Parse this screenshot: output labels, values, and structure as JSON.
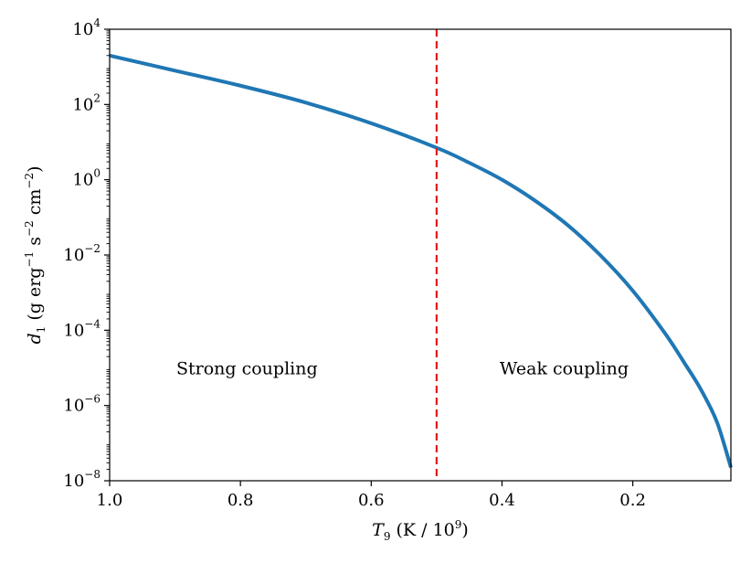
{
  "chart_data": {
    "type": "line",
    "title": "",
    "xlabel": {
      "var": "T",
      "sub": "9",
      "units_prefix": " (K / 10",
      "units_sup": "9",
      "units_suffix": ")"
    },
    "ylabel": {
      "var": "d",
      "sub": "1",
      "p1": " (g erg",
      "s1": "−1",
      "p2": " s",
      "s2": "−2",
      "p3": " cm",
      "s3": "−2",
      "p4": ")"
    },
    "x_axis": {
      "direction": "reversed",
      "lim": [
        1.0,
        0.05
      ],
      "ticks": [
        {
          "value": 1.0,
          "label": "1.0"
        },
        {
          "value": 0.8,
          "label": "0.8"
        },
        {
          "value": 0.6,
          "label": "0.6"
        },
        {
          "value": 0.4,
          "label": "0.4"
        },
        {
          "value": 0.2,
          "label": "0.2"
        }
      ]
    },
    "y_axis": {
      "scale": "log",
      "lim_exp": [
        -8,
        4
      ],
      "ticks": [
        {
          "exp": 4,
          "base": "10",
          "sup": "4"
        },
        {
          "exp": 2,
          "base": "10",
          "sup": "2"
        },
        {
          "exp": 0,
          "base": "10",
          "sup": "0"
        },
        {
          "exp": -2,
          "base": "10",
          "sup": "−2"
        },
        {
          "exp": -4,
          "base": "10",
          "sup": "−4"
        },
        {
          "exp": -6,
          "base": "10",
          "sup": "−6"
        },
        {
          "exp": -8,
          "base": "10",
          "sup": "−8"
        }
      ]
    },
    "series": [
      {
        "name": "d1",
        "color": "#1f77b4",
        "x": [
          1.0,
          0.9,
          0.8,
          0.7,
          0.6,
          0.5,
          0.45,
          0.4,
          0.35,
          0.3,
          0.25,
          0.2,
          0.15,
          0.12,
          0.1,
          0.08,
          0.07,
          0.06,
          0.05
        ],
        "log10_y": [
          3.3,
          2.9,
          2.5,
          2.05,
          1.5,
          0.85,
          0.45,
          0.0,
          -0.55,
          -1.2,
          -2.0,
          -2.95,
          -4.1,
          -4.9,
          -5.45,
          -6.1,
          -6.5,
          -7.05,
          -7.65
        ]
      }
    ],
    "vline": {
      "x": 0.5,
      "color": "#e41a1c",
      "style": "dashed"
    },
    "annotations": [
      {
        "text": "Strong coupling",
        "x": 0.79,
        "log10_y": -5.0
      },
      {
        "text": "Weak coupling",
        "x": 0.305,
        "log10_y": -5.0
      }
    ]
  }
}
